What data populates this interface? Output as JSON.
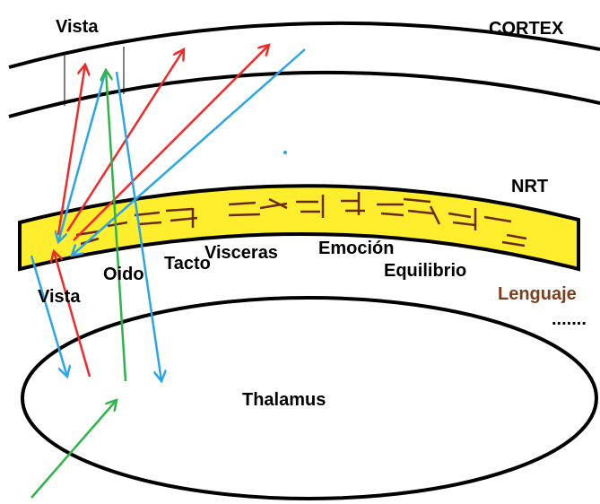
{
  "labels": [
    "Vista",
    "CORTEX",
    "NRT",
    "Visceras",
    "Emoción",
    "Tacto",
    "Oido",
    "Vista",
    "Equilibrio",
    "Lenguaje",
    ".......",
    "Thalamus"
  ]
}
